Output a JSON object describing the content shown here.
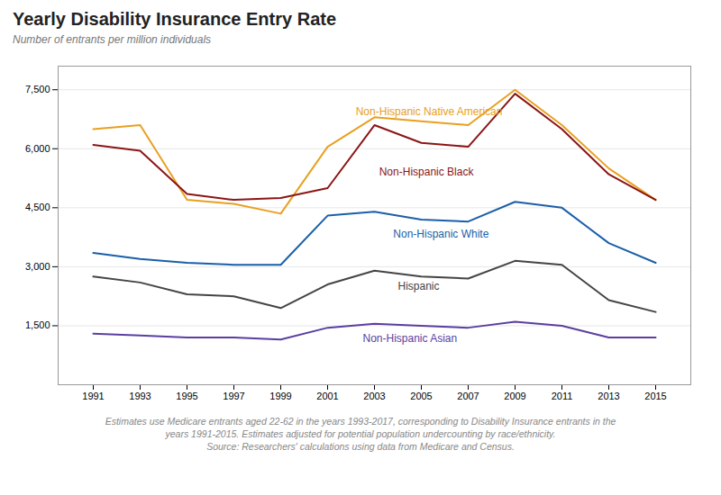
{
  "chart_data": {
    "type": "line",
    "title": "Yearly Disability Insurance Entry Rate",
    "subtitle": "Number of entrants per million individuals",
    "x": [
      1991,
      1993,
      1995,
      1997,
      1999,
      2001,
      2003,
      2005,
      2007,
      2009,
      2011,
      2013,
      2015
    ],
    "series": [
      {
        "name": "Non-Hispanic Native American",
        "color": "#E8A020",
        "values": [
          6500,
          6600,
          4700,
          4600,
          4350,
          6050,
          6800,
          6700,
          6600,
          7500,
          6600,
          5500,
          4700
        ]
      },
      {
        "name": "Non-Hispanic Black",
        "color": "#8B1515",
        "values": [
          6100,
          5950,
          4850,
          4700,
          4750,
          5000,
          6600,
          6150,
          6050,
          7400,
          6500,
          5350,
          4700
        ]
      },
      {
        "name": "Non-Hispanic White",
        "color": "#1A5FA8",
        "values": [
          3350,
          3200,
          3100,
          3050,
          3050,
          4300,
          4400,
          4200,
          4150,
          4650,
          4500,
          3600,
          3100
        ]
      },
      {
        "name": "Hispanic",
        "color": "#444444",
        "values": [
          2750,
          2600,
          2300,
          2250,
          1950,
          2550,
          2900,
          2750,
          2700,
          3150,
          3050,
          2150,
          1850
        ]
      },
      {
        "name": "Non-Hispanic Asian",
        "color": "#5B3EA0",
        "values": [
          1300,
          1250,
          1200,
          1200,
          1150,
          1450,
          1550,
          1500,
          1450,
          1600,
          1500,
          1200,
          1200
        ]
      }
    ],
    "annotations": [
      {
        "text": "Non-Hispanic Native American",
        "x": 2002.2,
        "y": 6950
      },
      {
        "text": "Non-Hispanic Black",
        "x": 2003.2,
        "y": 5400
      },
      {
        "text": "Non-Hispanic White",
        "x": 2003.8,
        "y": 3820
      },
      {
        "text": "Hispanic",
        "x": 2004.0,
        "y": 2500
      },
      {
        "text": "Non-Hispanic Asian",
        "x": 2002.5,
        "y": 1180
      }
    ],
    "xlim": [
      1989.5,
      2016.5
    ],
    "xticks": [
      1991,
      1993,
      1995,
      1997,
      1999,
      2001,
      2003,
      2005,
      2007,
      2009,
      2011,
      2013,
      2015
    ],
    "ylim": [
      0,
      8100
    ],
    "yticks": [
      {
        "value": 1500,
        "label": "1,500"
      },
      {
        "value": 3000,
        "label": "3,000"
      },
      {
        "value": 4500,
        "label": "4,500"
      },
      {
        "value": 6000,
        "label": "6,000"
      },
      {
        "value": 7500,
        "label": "7,500"
      }
    ],
    "grid": true,
    "footnote": [
      "Estimates use Medicare entrants aged 22-62 in the years 1993-2017, corresponding to Disability Insurance entrants in the",
      "years 1991-2015. Estimates adjusted for potential population undercounting by race/ethnicity.",
      "Source: Researchers' calculations using data from Medicare and Census."
    ]
  }
}
